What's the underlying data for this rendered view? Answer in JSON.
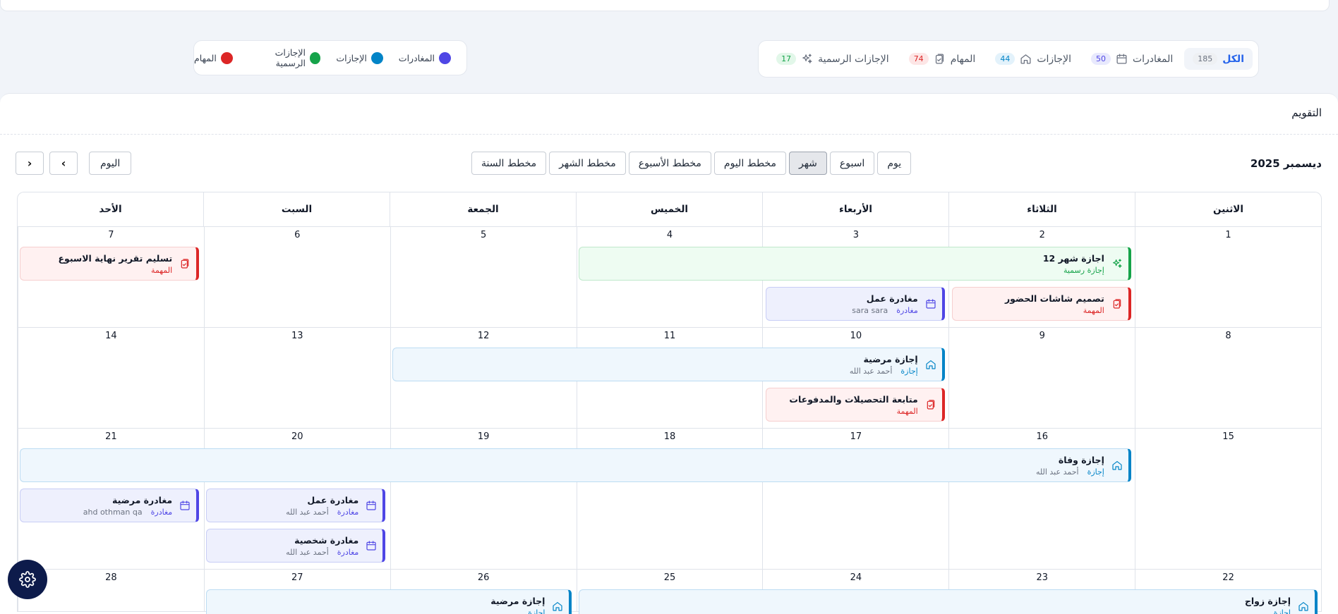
{
  "legend": [
    {
      "label": "المغادرات",
      "color": "#4f46e5"
    },
    {
      "label": "الإجازات",
      "color": "#0284c7"
    },
    {
      "label": "الإجازات الرسمية",
      "color": "#16a34a"
    },
    {
      "label": "المهام",
      "color": "#dc2626"
    }
  ],
  "filters": [
    {
      "label": "الكل",
      "count": "185",
      "icon": "none",
      "active": true,
      "badge_bg": "#eef0f3",
      "badge_fg": "#6b7280"
    },
    {
      "label": "المغادرات",
      "count": "50",
      "icon": "calendar-icon",
      "badge_bg": "#e8e9fd",
      "badge_fg": "#4f46e5"
    },
    {
      "label": "الإجازات",
      "count": "44",
      "icon": "home-icon",
      "badge_bg": "#e3f2fb",
      "badge_fg": "#0284c7"
    },
    {
      "label": "المهام",
      "count": "74",
      "icon": "clipboard-icon",
      "badge_bg": "#fde6e6",
      "badge_fg": "#dc2626"
    },
    {
      "label": "الإجازات الرسمية",
      "count": "17",
      "icon": "sparkles-icon",
      "badge_bg": "#e2f7e9",
      "badge_fg": "#16a34a"
    }
  ],
  "calendar": {
    "title": "التقويم",
    "month_label": "ديسمبر 2025",
    "views": [
      {
        "label": "يوم",
        "active": false
      },
      {
        "label": "اسبوع",
        "active": false
      },
      {
        "label": "شهر",
        "active": true
      },
      {
        "label": "مخطط اليوم",
        "active": false
      },
      {
        "label": "مخطط الأسبوع",
        "active": false
      },
      {
        "label": "مخطط الشهر",
        "active": false
      },
      {
        "label": "مخطط السنة",
        "active": false
      }
    ],
    "today_label": "اليوم",
    "weekdays": [
      "الاثنين",
      "الثلاثاء",
      "الأربعاء",
      "الخميس",
      "الجمعة",
      "السبت",
      "الأحد"
    ],
    "weeks": [
      {
        "days": [
          "1",
          "2",
          "3",
          "4",
          "5",
          "6",
          "7"
        ],
        "height": 143
      },
      {
        "days": [
          "8",
          "9",
          "10",
          "11",
          "12",
          "13",
          "14"
        ],
        "height": 143
      },
      {
        "days": [
          "15",
          "16",
          "17",
          "18",
          "19",
          "20",
          "21"
        ],
        "height": 200
      },
      {
        "days": [
          "22",
          "23",
          "24",
          "25",
          "26",
          "27",
          "28"
        ],
        "height": 60
      }
    ],
    "events": [
      {
        "week": 0,
        "start": 1,
        "span": 3,
        "row": 0,
        "kind": "hol",
        "icon": "sparkles-icon",
        "title": "اجازة شهر 12",
        "type": "إجازة رسمية",
        "person": ""
      },
      {
        "week": 0,
        "start": 6,
        "span": 1,
        "row": 0,
        "kind": "task",
        "icon": "clipboard-icon",
        "title": "تسليم تقرير نهاية الاسبوع",
        "type": "المهمة",
        "person": ""
      },
      {
        "week": 0,
        "start": 1,
        "span": 1,
        "row": 1,
        "kind": "task",
        "icon": "clipboard-icon",
        "title": "تصميم شاشات الحضور",
        "type": "المهمة",
        "person": ""
      },
      {
        "week": 0,
        "start": 2,
        "span": 1,
        "row": 1,
        "kind": "leave",
        "icon": "calendar-icon",
        "title": "مغادرة عمل",
        "type": "مغادرة",
        "person": "sara sara"
      },
      {
        "week": 1,
        "start": 2,
        "span": 3,
        "row": 0,
        "kind": "vac",
        "icon": "home-icon",
        "title": "إجازة مرضية",
        "type": "إجازة",
        "person": "أحمد عبد الله"
      },
      {
        "week": 1,
        "start": 2,
        "span": 1,
        "row": 1,
        "kind": "task",
        "icon": "clipboard-icon",
        "title": "متابعة التحصيلات والمدفوعات",
        "type": "المهمة",
        "person": ""
      },
      {
        "week": 2,
        "start": 1,
        "span": 6,
        "row": 0,
        "kind": "vac",
        "icon": "home-icon",
        "title": "إجازة وفاة",
        "type": "إجازة",
        "person": "أحمد عبد الله"
      },
      {
        "week": 2,
        "start": 5,
        "span": 1,
        "row": 1,
        "kind": "leave",
        "icon": "calendar-icon",
        "title": "مغادرة عمل",
        "type": "مغادرة",
        "person": "أحمد عبد الله"
      },
      {
        "week": 2,
        "start": 6,
        "span": 1,
        "row": 1,
        "kind": "leave",
        "icon": "calendar-icon",
        "title": "مغادرة مرضية",
        "type": "مغادرة",
        "person": "ahd othman qa"
      },
      {
        "week": 2,
        "start": 5,
        "span": 1,
        "row": 2,
        "kind": "leave",
        "icon": "calendar-icon",
        "title": "مغادرة شخصية",
        "type": "مغادرة",
        "person": "أحمد عبد الله"
      },
      {
        "week": 3,
        "start": 0,
        "span": 4,
        "row": 0,
        "kind": "vac",
        "icon": "home-icon",
        "title": "إجازة زواج",
        "type": "إجازة",
        "person": ""
      },
      {
        "week": 3,
        "start": 4,
        "span": 2,
        "row": 0,
        "kind": "vac",
        "icon": "home-icon",
        "title": "إجازة مرضية",
        "type": "إجازة",
        "person": ""
      }
    ]
  }
}
